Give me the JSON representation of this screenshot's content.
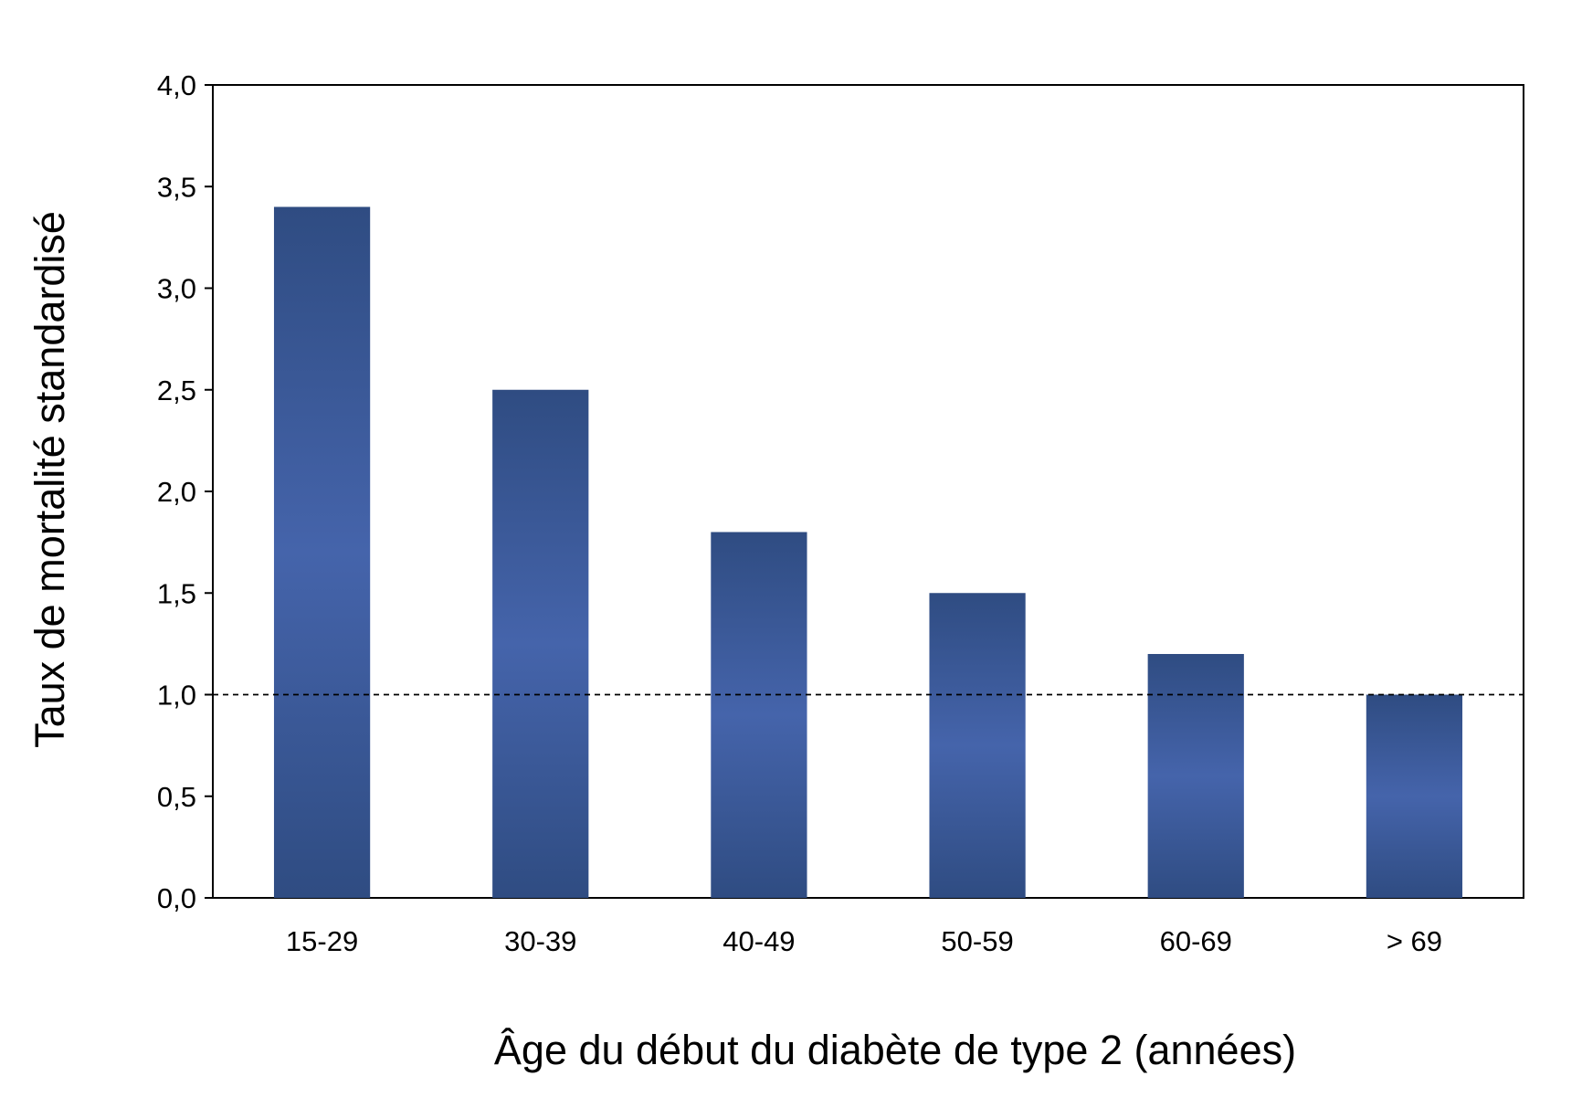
{
  "chart_data": {
    "type": "bar",
    "title": "",
    "xlabel": "Âge du début du diabète de type 2 (années)",
    "ylabel": "Taux de mortalité standardisé",
    "categories": [
      "15-29",
      "30-39",
      "40-49",
      "50-59",
      "60-69",
      "> 69"
    ],
    "values": [
      3.4,
      2.5,
      1.8,
      1.5,
      1.2,
      1.0
    ],
    "ylim": [
      0,
      4
    ],
    "yticks": [
      0,
      0.5,
      1,
      1.5,
      2,
      2.5,
      3,
      3.5,
      4
    ],
    "ytick_labels": [
      "0,0",
      "0,5",
      "1,0",
      "1,5",
      "2,0",
      "2,5",
      "3,0",
      "3,5",
      "4,0"
    ],
    "reference_line": 1.0,
    "grid": false,
    "legend": "none",
    "colors": {
      "bar_edge": "#2f4c82",
      "bar_center": "#4564ab",
      "axis": "#000000",
      "reference_line": "#000000"
    }
  }
}
